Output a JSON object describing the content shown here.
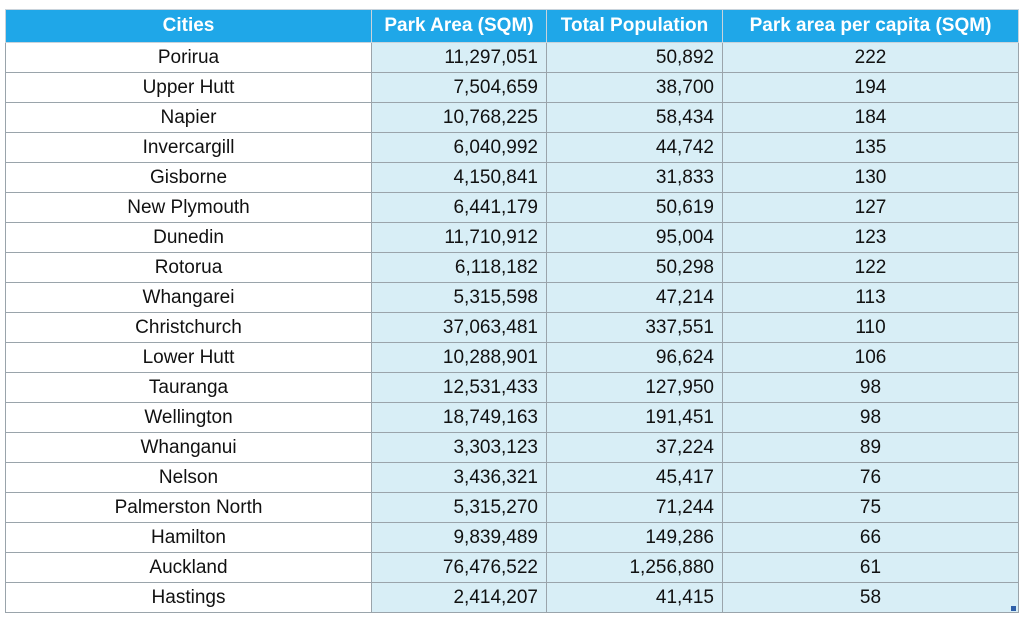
{
  "table": {
    "headers": [
      "Cities",
      "Park Area (SQM)",
      "Total Population",
      "Park area per capita (SQM)"
    ],
    "rows": [
      [
        "Porirua",
        "11,297,051",
        "50,892",
        "222"
      ],
      [
        "Upper Hutt",
        "7,504,659",
        "38,700",
        "194"
      ],
      [
        "Napier",
        "10,768,225",
        "58,434",
        "184"
      ],
      [
        "Invercargill",
        "6,040,992",
        "44,742",
        "135"
      ],
      [
        "Gisborne",
        "4,150,841",
        "31,833",
        "130"
      ],
      [
        "New Plymouth",
        "6,441,179",
        "50,619",
        "127"
      ],
      [
        "Dunedin",
        "11,710,912",
        "95,004",
        "123"
      ],
      [
        "Rotorua",
        "6,118,182",
        "50,298",
        "122"
      ],
      [
        "Whangarei",
        "5,315,598",
        "47,214",
        "113"
      ],
      [
        "Christchurch",
        "37,063,481",
        "337,551",
        "110"
      ],
      [
        "Lower Hutt",
        "10,288,901",
        "96,624",
        "106"
      ],
      [
        "Tauranga",
        "12,531,433",
        "127,950",
        "98"
      ],
      [
        "Wellington",
        "18,749,163",
        "191,451",
        "98"
      ],
      [
        "Whanganui",
        "3,303,123",
        "37,224",
        "89"
      ],
      [
        "Nelson",
        "3,436,321",
        "45,417",
        "76"
      ],
      [
        "Palmerston North",
        "5,315,270",
        "71,244",
        "75"
      ],
      [
        "Hamilton",
        "9,839,489",
        "149,286",
        "66"
      ],
      [
        "Auckland",
        "76,476,522",
        "1,256,880",
        "61"
      ],
      [
        "Hastings",
        "2,414,207",
        "41,415",
        "58"
      ]
    ]
  },
  "colors": {
    "header_bg": "#1fa7e8",
    "header_text": "#ffffff",
    "data_cell_bg": "#d8eef6",
    "city_cell_bg": "#ffffff"
  }
}
